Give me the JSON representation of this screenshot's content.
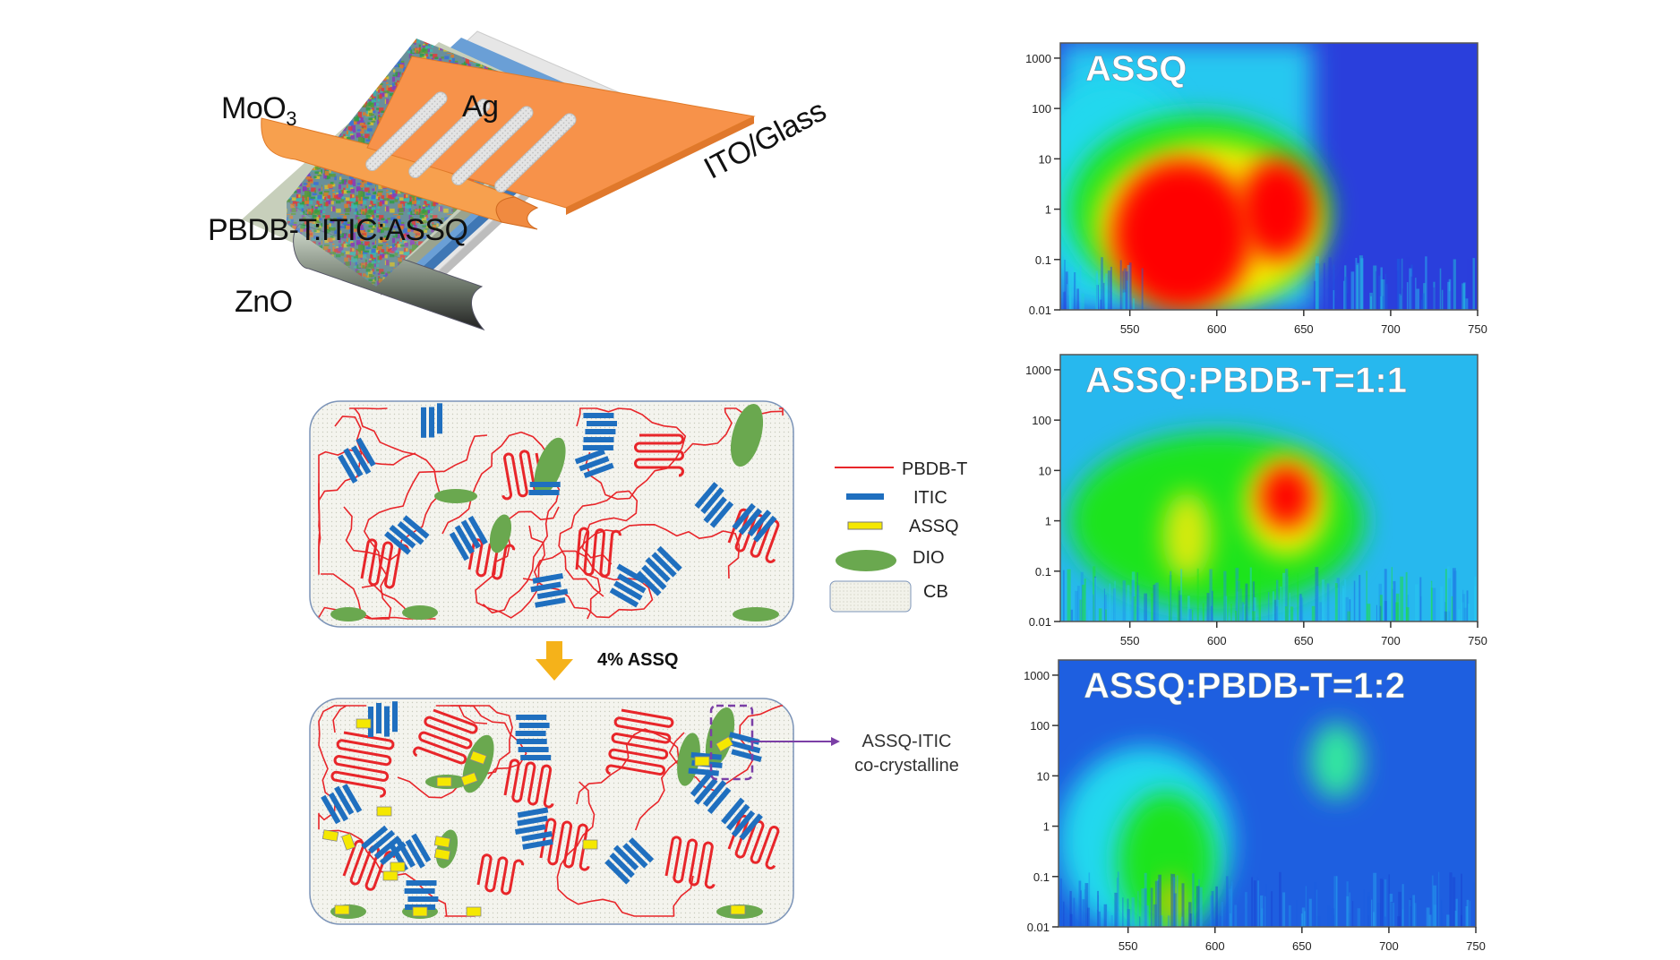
{
  "device": {
    "labels": {
      "moo3_main": "MoO",
      "moo3_sub": "3",
      "ag": "Ag",
      "active_layer": "PBDB-T:ITIC:ASSQ",
      "zno": "ZnO",
      "ito_glass": "ITO/Glass"
    },
    "colors": {
      "electrode": "#f7924a",
      "ito": "#5f97d2",
      "glass": "#e2e2e2",
      "interlayer": "#c7cfbb"
    }
  },
  "morphology": {
    "step_label": "4% ASSQ",
    "callout_line1": "ASSQ-ITIC",
    "callout_line2": "co-crystalline",
    "legend": [
      {
        "label": "PBDB-T",
        "color": "#e8262a"
      },
      {
        "label": "ITIC",
        "color": "#1f6fbf"
      },
      {
        "label": "ASSQ",
        "color": "#f5e800"
      },
      {
        "label": "DIO",
        "color": "#6aa84f"
      },
      {
        "label": "CB",
        "color": "#f2f2ea"
      }
    ]
  },
  "chart_data": [
    {
      "type": "heatmap",
      "title": "ASSQ",
      "xlim": [
        510,
        750
      ],
      "ylim": [
        0.01,
        2000
      ],
      "yscale": "log",
      "x_ticks": [
        "550",
        "600",
        "650",
        "700",
        "750"
      ],
      "y_ticks": [
        "1000",
        "100",
        "10",
        "1",
        "0.1",
        "0.01"
      ],
      "background": "#2a3fdc",
      "features": [
        {
          "x": 540,
          "y": 3,
          "dx": 50,
          "dy_decades": 3.5,
          "color": "#22d8ee"
        },
        {
          "x": 590,
          "y": 1,
          "dx": 75,
          "dy_decades": 3.0,
          "color": "#1de41d"
        },
        {
          "x": 595,
          "y": 0.5,
          "dx": 65,
          "dy_decades": 2.6,
          "color": "#f4f000"
        },
        {
          "x": 580,
          "y": 0.3,
          "dx": 40,
          "dy_decades": 2.4,
          "color": "#ff0000"
        },
        {
          "x": 635,
          "y": 1,
          "dx": 22,
          "dy_decades": 1.6,
          "color": "#ff0000"
        }
      ]
    },
    {
      "type": "heatmap",
      "title": "ASSQ:PBDB-T=1:1",
      "xlim": [
        510,
        750
      ],
      "ylim": [
        0.01,
        2000
      ],
      "yscale": "log",
      "x_ticks": [
        "550",
        "600",
        "650",
        "700",
        "750"
      ],
      "y_ticks": [
        "1000",
        "100",
        "10",
        "1",
        "0.1",
        "0.01"
      ],
      "background": "#27b8ee",
      "features": [
        {
          "x": 600,
          "y": 1,
          "dx": 85,
          "dy_decades": 2.8,
          "color": "#1de41d"
        },
        {
          "x": 583,
          "y": 0.5,
          "dx": 14,
          "dy_decades": 1.4,
          "color": "#d8ea10"
        },
        {
          "x": 640,
          "y": 2,
          "dx": 24,
          "dy_decades": 1.6,
          "color": "#f4f000"
        },
        {
          "x": 640,
          "y": 3,
          "dx": 15,
          "dy_decades": 1.0,
          "color": "#ff0000"
        }
      ]
    },
    {
      "type": "heatmap",
      "title": "ASSQ:PBDB-T=1:2",
      "xlim": [
        510,
        750
      ],
      "ylim": [
        0.01,
        2000
      ],
      "yscale": "log",
      "x_ticks": [
        "550",
        "600",
        "650",
        "700",
        "750"
      ],
      "y_ticks": [
        "1000",
        "100",
        "10",
        "1",
        "0.1",
        "0.01"
      ],
      "background": "#1e5fe0",
      "features": [
        {
          "x": 560,
          "y": 0.5,
          "dx": 50,
          "dy_decades": 3.0,
          "color": "#22d8ee"
        },
        {
          "x": 572,
          "y": 0.2,
          "dx": 28,
          "dy_decades": 2.2,
          "color": "#1de41d"
        },
        {
          "x": 575,
          "y": 0.03,
          "dx": 6,
          "dy_decades": 0.8,
          "color": "#f4c000"
        },
        {
          "x": 670,
          "y": 20,
          "dx": 15,
          "dy_decades": 1.2,
          "color": "#33e6a0"
        }
      ]
    }
  ]
}
